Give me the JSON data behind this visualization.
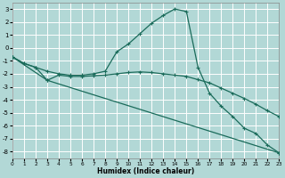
{
  "xlabel": "Humidex (Indice chaleur)",
  "xlim": [
    0,
    23
  ],
  "ylim": [
    -8.5,
    3.5
  ],
  "yticks": [
    3,
    2,
    1,
    0,
    -1,
    -2,
    -3,
    -4,
    -5,
    -6,
    -7,
    -8
  ],
  "xticks": [
    0,
    1,
    2,
    3,
    4,
    5,
    6,
    7,
    8,
    9,
    10,
    11,
    12,
    13,
    14,
    15,
    16,
    17,
    18,
    19,
    20,
    21,
    22,
    23
  ],
  "bg_color": "#b2d8d6",
  "grid_color": "#ffffff",
  "line_color": "#1a6b5a",
  "line1_x": [
    0,
    1,
    2,
    3,
    4,
    5,
    6,
    7,
    8,
    9,
    10,
    11,
    12,
    13,
    14,
    15,
    16,
    17,
    18,
    19,
    20,
    21,
    22,
    23
  ],
  "line1_y": [
    -0.7,
    -1.2,
    -1.5,
    -1.8,
    -2.0,
    -2.1,
    -2.1,
    -2.0,
    -1.8,
    -0.3,
    0.3,
    1.1,
    1.9,
    2.5,
    3.0,
    2.8,
    -1.5,
    -3.5,
    -4.5,
    -5.3,
    -6.2,
    -6.6,
    -7.5,
    -8.1
  ],
  "line2_x": [
    0,
    1,
    2,
    3,
    4,
    5,
    6,
    7,
    8,
    9,
    10,
    11,
    12,
    13,
    14,
    15,
    16,
    17,
    18,
    19,
    20,
    21,
    22,
    23
  ],
  "line2_y": [
    -0.7,
    -1.2,
    -1.5,
    -2.5,
    -2.1,
    -2.2,
    -2.2,
    -2.15,
    -2.1,
    -2.0,
    -1.9,
    -1.85,
    -1.9,
    -2.0,
    -2.1,
    -2.2,
    -2.45,
    -2.7,
    -3.1,
    -3.5,
    -3.9,
    -4.35,
    -4.85,
    -5.3
  ],
  "line3_x": [
    0,
    3,
    23
  ],
  "line3_y": [
    -0.7,
    -2.5,
    -8.1
  ]
}
